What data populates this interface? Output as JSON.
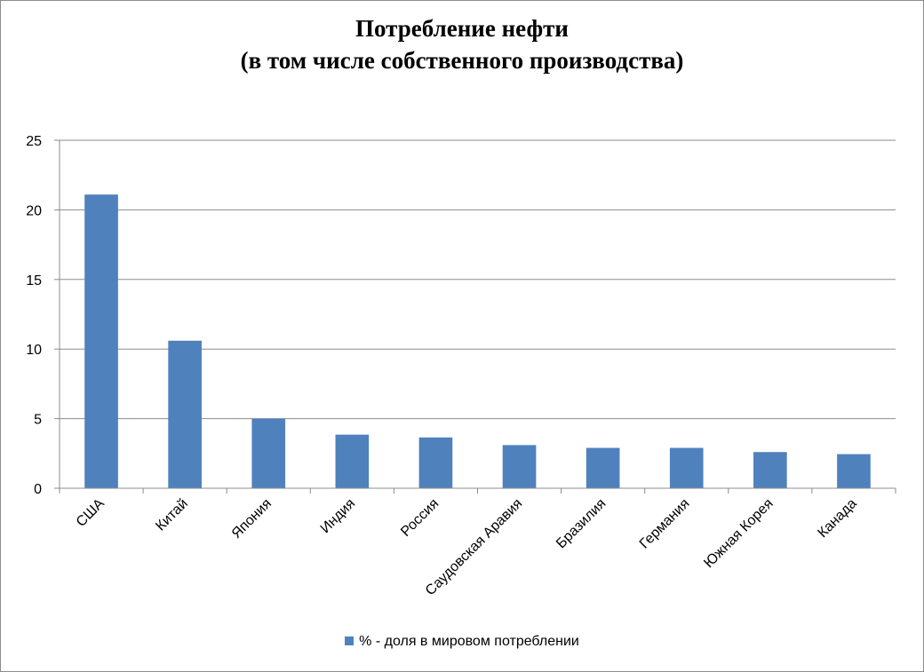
{
  "chart_data": {
    "type": "bar",
    "title_line1": "Потребление нефти",
    "title_line2": "(в том числе собственного производства)",
    "categories": [
      "США",
      "Китай",
      "Япония",
      "Индия",
      "Россия",
      "Саудовская Аравия",
      "Бразилия",
      "Германия",
      "Южная Корея",
      "Канада"
    ],
    "series": [
      {
        "name": "% - доля в мировом потреблении",
        "values": [
          21.1,
          10.6,
          5.0,
          3.85,
          3.65,
          3.1,
          2.9,
          2.9,
          2.6,
          2.45
        ],
        "color": "#4f81bd"
      }
    ],
    "yticks": [
      "0",
      "5",
      "10",
      "15",
      "20",
      "25"
    ],
    "ylim": [
      0,
      25
    ],
    "grid": true,
    "legend_position": "bottom",
    "xlabel": "",
    "ylabel": ""
  }
}
